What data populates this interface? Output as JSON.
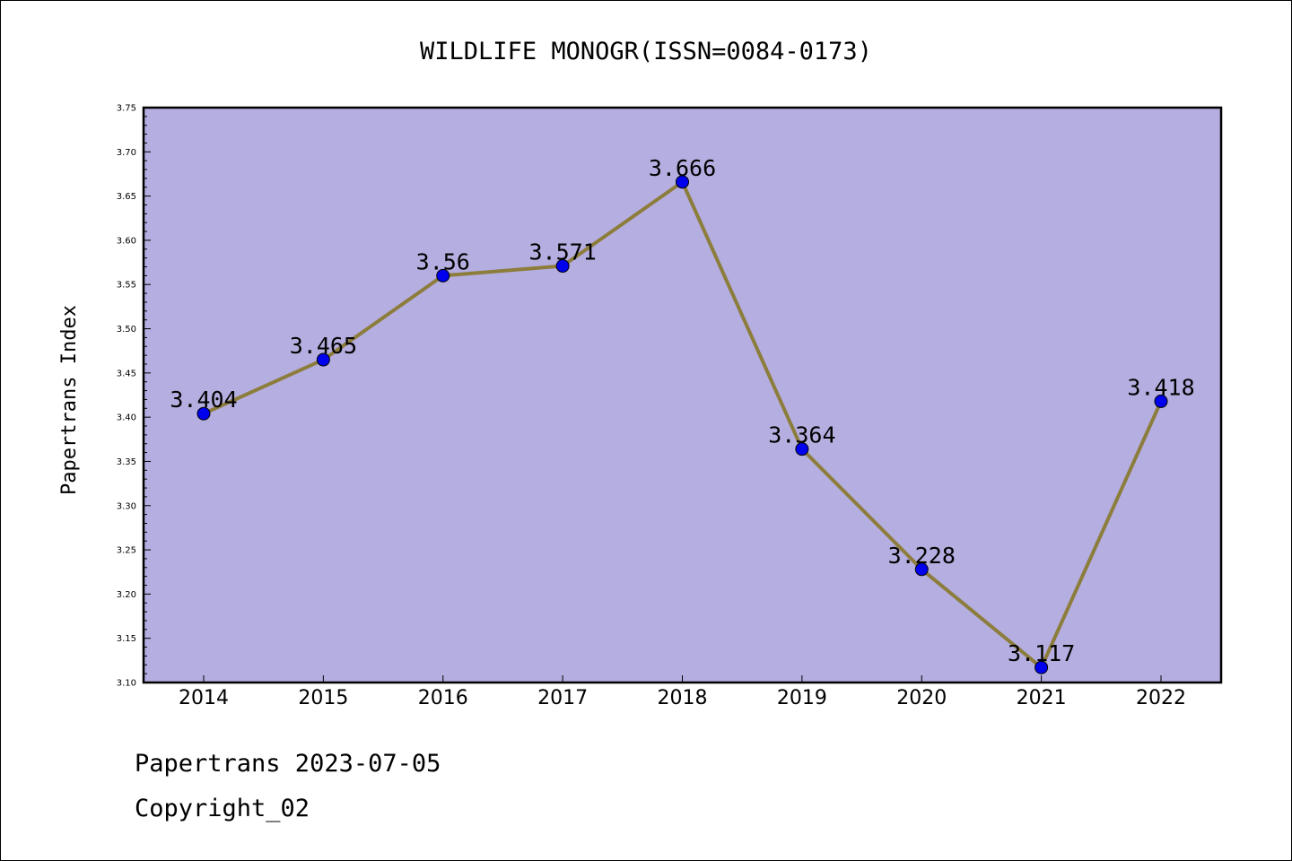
{
  "chart_data": {
    "type": "line",
    "title": "WILDLIFE MONOGR(ISSN=0084-0173)",
    "xlabel": "",
    "ylabel": "Papertrans Index",
    "categories": [
      "2014",
      "2015",
      "2016",
      "2017",
      "2018",
      "2019",
      "2020",
      "2021",
      "2022"
    ],
    "values": [
      3.404,
      3.465,
      3.56,
      3.571,
      3.666,
      3.364,
      3.228,
      3.117,
      3.418
    ],
    "data_labels": [
      "3.404",
      "3.465",
      "3.56",
      "3.571",
      "3.666",
      "3.364",
      "3.228",
      "3.117",
      "3.418"
    ],
    "ylim": [
      3.1,
      3.75
    ],
    "yticks": [
      "3.10",
      "3.15",
      "3.20",
      "3.25",
      "3.30",
      "3.35",
      "3.40",
      "3.45",
      "3.50",
      "3.55",
      "3.60",
      "3.65",
      "3.70",
      "3.75"
    ],
    "grid": false,
    "legend": "none",
    "colors": {
      "plot_background": "#b5aee0",
      "line": "#8c7d3c",
      "marker": "#0000ee",
      "axis": "#000000"
    }
  },
  "footer": {
    "line1": "Papertrans 2023-07-05",
    "line2": "Copyright_02"
  }
}
